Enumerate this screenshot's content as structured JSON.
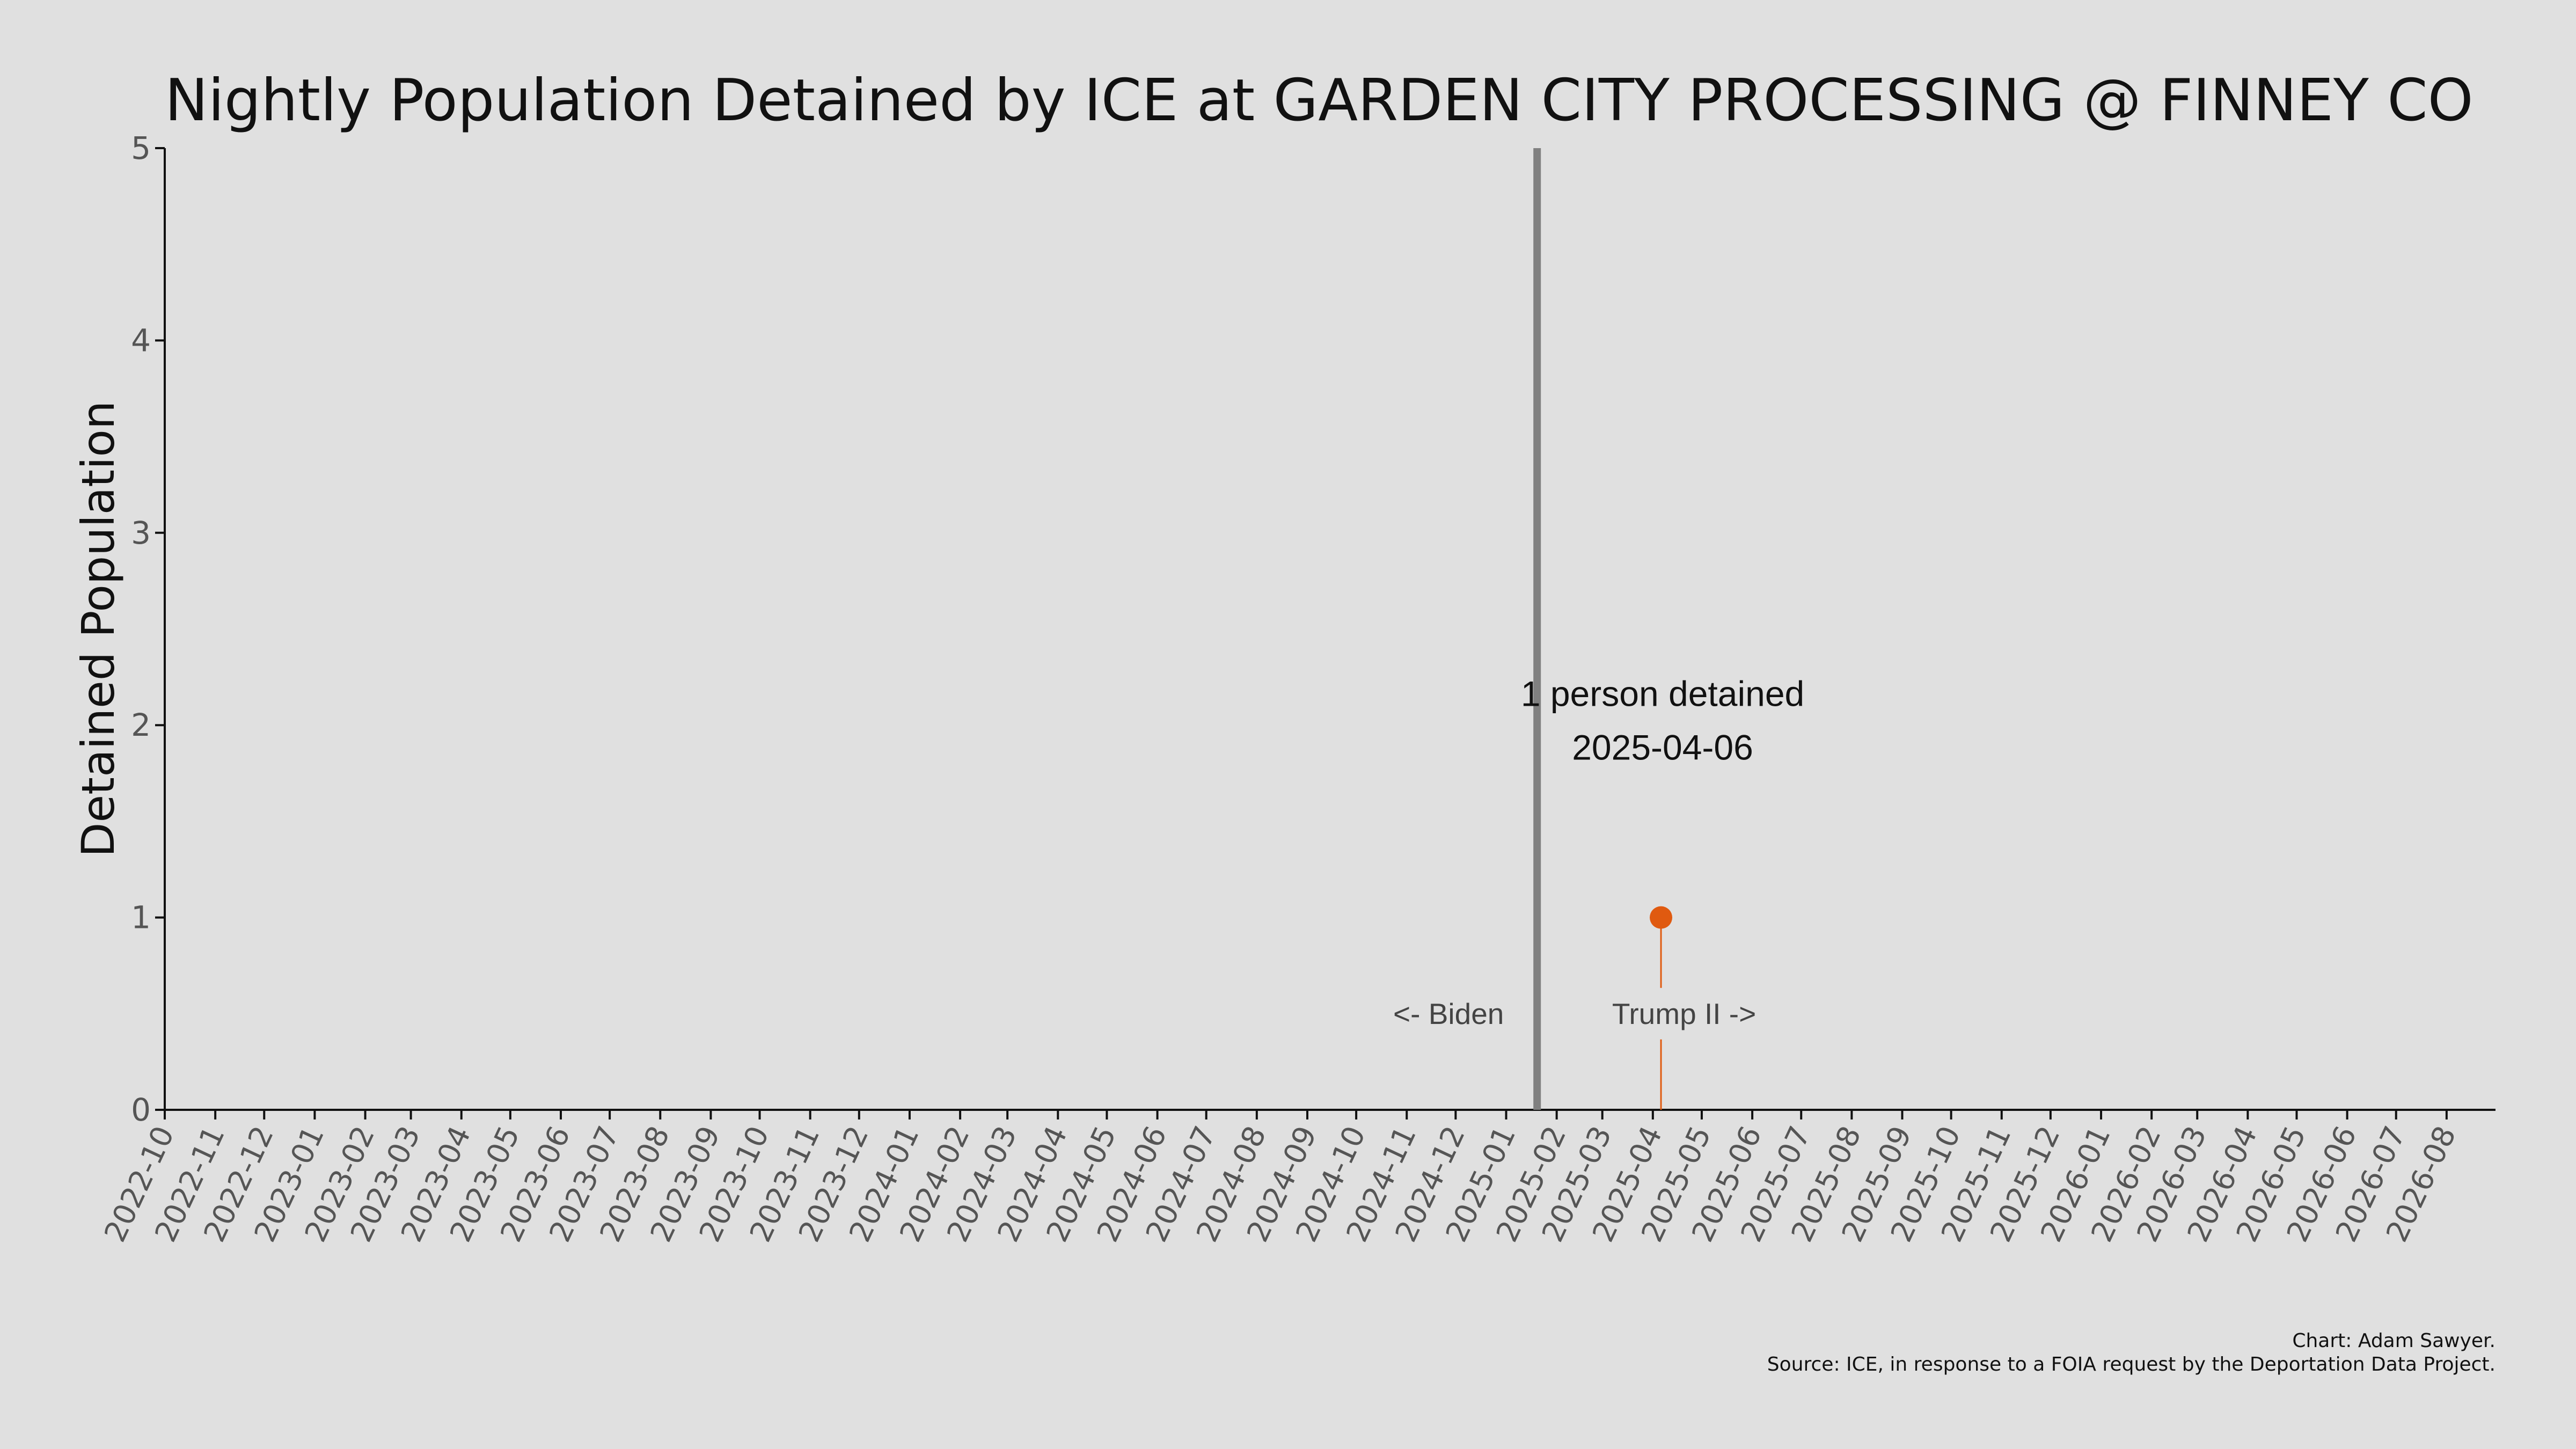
{
  "chart_data": {
    "type": "line",
    "title": "Nightly Population Detained by ICE at GARDEN CITY PROCESSING @ FINNEY CO",
    "xlabel": "",
    "ylabel": "Detained Population",
    "ylim": [
      0,
      5
    ],
    "yticks": [
      "0",
      "1",
      "2",
      "3",
      "4",
      "5"
    ],
    "xlim": [
      "2022-10-01",
      "2026-08-31"
    ],
    "xticks": [
      "2022-10",
      "2022-11",
      "2022-12",
      "2023-01",
      "2023-02",
      "2023-03",
      "2023-04",
      "2023-05",
      "2023-06",
      "2023-07",
      "2023-08",
      "2023-09",
      "2023-10",
      "2023-11",
      "2023-12",
      "2024-01",
      "2024-02",
      "2024-03",
      "2024-04",
      "2024-05",
      "2024-06",
      "2024-07",
      "2024-08",
      "2024-09",
      "2024-10",
      "2024-11",
      "2024-12",
      "2025-01",
      "2025-02",
      "2025-03",
      "2025-04",
      "2025-05",
      "2025-06",
      "2025-07",
      "2025-08",
      "2025-09",
      "2025-10",
      "2025-11",
      "2025-12",
      "2026-01",
      "2026-02",
      "2026-03",
      "2026-04",
      "2026-05",
      "2026-06",
      "2026-07",
      "2026-08"
    ],
    "series": [
      {
        "color": "#e05a10",
        "points": [
          {
            "x": "2025-04-06",
            "y": 1
          }
        ]
      }
    ],
    "divider": {
      "x": "2025-01-20",
      "color": "#808080"
    },
    "era_labels": {
      "left": "<- Biden",
      "right": "Trump II ->"
    },
    "annotation": {
      "line1": "1 person detained",
      "line2": "2025-04-06"
    },
    "grid": false,
    "legend": "none"
  },
  "credits": {
    "line1": "Chart: Adam Sawyer.",
    "line2": "Source: ICE, in response to a FOIA request by the Deportation Data Project."
  }
}
